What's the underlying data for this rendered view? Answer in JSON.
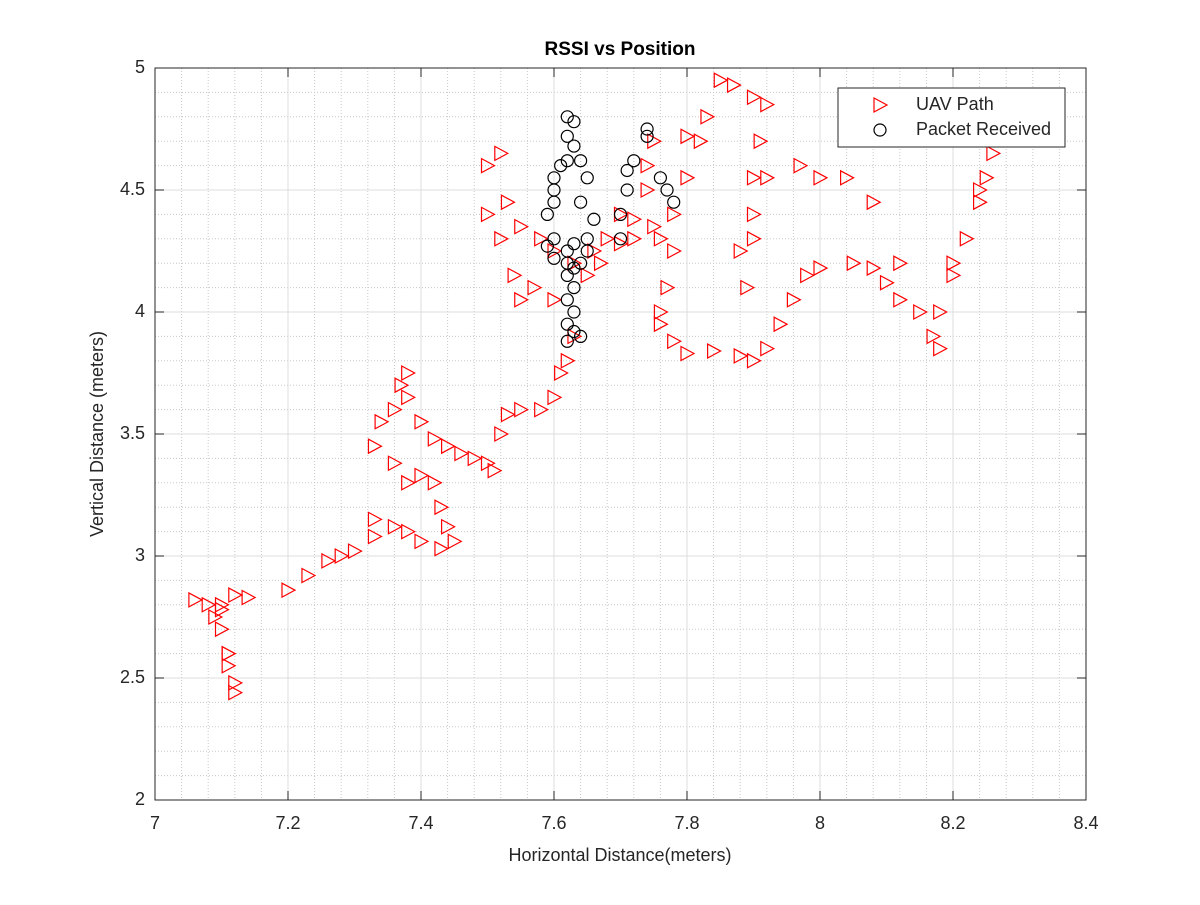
{
  "chart_data": {
    "type": "scatter",
    "title": "RSSI vs Position",
    "x_label": "Horizontal Distance(meters)",
    "y_label": "Vertical Distance (meters)",
    "xlim": [
      7,
      8.4
    ],
    "xticks": [
      7,
      7.2,
      7.4,
      7.6,
      7.8,
      8,
      8.2,
      8.4
    ],
    "ylim": [
      2,
      5
    ],
    "yticks": [
      2,
      2.5,
      3,
      3.5,
      4,
      4.5,
      5
    ],
    "grid": true,
    "minor_grid": true,
    "legend_position": "top-right",
    "series": [
      {
        "name": "UAV Path",
        "color": "#ff0000",
        "marker": "triangle-right",
        "x": [
          7.06,
          7.08,
          7.1,
          7.09,
          7.1,
          7.11,
          7.11,
          7.12,
          7.12,
          7.11,
          7.1,
          7.12,
          7.14,
          7.2,
          7.23,
          7.26,
          7.28,
          7.3,
          7.33,
          7.33,
          7.36,
          7.38,
          7.4,
          7.43,
          7.45,
          7.44,
          7.43,
          7.42,
          7.4,
          7.38,
          7.36,
          7.33,
          7.34,
          7.36,
          7.37,
          7.38,
          7.38,
          7.4,
          7.42,
          7.44,
          7.46,
          7.48,
          7.5,
          7.51,
          7.52,
          7.53,
          7.55,
          7.58,
          7.6,
          7.61,
          7.62,
          7.63,
          7.6,
          7.57,
          7.55,
          7.54,
          7.52,
          7.5,
          7.5,
          7.52,
          7.53,
          7.55,
          7.58,
          7.6,
          7.63,
          7.66,
          7.68,
          7.7,
          7.72,
          7.74,
          7.75,
          7.74,
          7.76,
          7.78,
          7.77,
          7.76,
          7.76,
          7.78,
          7.8,
          7.84,
          7.88,
          7.9,
          7.92,
          7.94,
          7.96,
          7.98,
          8.0,
          8.05,
          8.08,
          8.1,
          8.12,
          8.15,
          8.17,
          8.18,
          8.18,
          8.2,
          8.22,
          8.24,
          8.25,
          8.26,
          8.24,
          8.2,
          8.12,
          8.08,
          8.04,
          8.0,
          7.97,
          7.92,
          7.9,
          7.88,
          7.89,
          7.9,
          7.9,
          7.91,
          7.92,
          7.9,
          7.87,
          7.85,
          7.83,
          7.82,
          7.8,
          7.8,
          7.78,
          7.75,
          7.72,
          7.7,
          7.67,
          7.65
        ],
        "values": [
          2.82,
          2.8,
          2.78,
          2.75,
          2.7,
          2.6,
          2.55,
          2.48,
          2.44,
          2.6,
          2.8,
          2.84,
          2.83,
          2.86,
          2.92,
          2.98,
          3.0,
          3.02,
          3.08,
          3.15,
          3.12,
          3.1,
          3.06,
          3.03,
          3.06,
          3.12,
          3.2,
          3.3,
          3.33,
          3.3,
          3.38,
          3.45,
          3.55,
          3.6,
          3.7,
          3.75,
          3.65,
          3.55,
          3.48,
          3.45,
          3.42,
          3.4,
          3.38,
          3.35,
          3.5,
          3.58,
          3.6,
          3.6,
          3.65,
          3.75,
          3.8,
          3.9,
          4.05,
          4.1,
          4.05,
          4.15,
          4.3,
          4.4,
          4.6,
          4.65,
          4.45,
          4.35,
          4.3,
          4.25,
          4.2,
          4.25,
          4.3,
          4.4,
          4.38,
          4.5,
          4.7,
          4.6,
          4.3,
          4.25,
          4.1,
          4.0,
          3.95,
          3.88,
          3.83,
          3.84,
          3.82,
          3.8,
          3.85,
          3.95,
          4.05,
          4.15,
          4.18,
          4.2,
          4.18,
          4.12,
          4.05,
          4.0,
          3.9,
          3.85,
          4.0,
          4.15,
          4.3,
          4.45,
          4.55,
          4.65,
          4.5,
          4.2,
          4.2,
          4.45,
          4.55,
          4.55,
          4.6,
          4.55,
          4.4,
          4.25,
          4.1,
          4.3,
          4.55,
          4.7,
          4.85,
          4.88,
          4.93,
          4.95,
          4.8,
          4.7,
          4.72,
          4.55,
          4.4,
          4.35,
          4.3,
          4.28,
          4.2,
          4.15
        ]
      },
      {
        "name": "Packet Received",
        "color": "#000000",
        "marker": "circle",
        "x": [
          7.62,
          7.63,
          7.62,
          7.63,
          7.62,
          7.61,
          7.6,
          7.6,
          7.6,
          7.59,
          7.6,
          7.59,
          7.6,
          7.62,
          7.62,
          7.63,
          7.62,
          7.63,
          7.62,
          7.63,
          7.62,
          7.63,
          7.62,
          7.64,
          7.64,
          7.63,
          7.65,
          7.64,
          7.65,
          7.64,
          7.66,
          7.65,
          7.7,
          7.7,
          7.71,
          7.71,
          7.72,
          7.74,
          7.74,
          7.76,
          7.77,
          7.78
        ],
        "values": [
          4.8,
          4.78,
          4.72,
          4.68,
          4.62,
          4.6,
          4.55,
          4.5,
          4.45,
          4.4,
          4.3,
          4.27,
          4.22,
          4.25,
          4.2,
          4.18,
          4.15,
          4.1,
          4.05,
          4.0,
          3.95,
          3.92,
          3.88,
          3.9,
          4.2,
          4.28,
          4.3,
          4.45,
          4.55,
          4.62,
          4.38,
          4.25,
          4.3,
          4.4,
          4.5,
          4.58,
          4.62,
          4.75,
          4.72,
          4.55,
          4.5,
          4.45
        ]
      }
    ]
  }
}
